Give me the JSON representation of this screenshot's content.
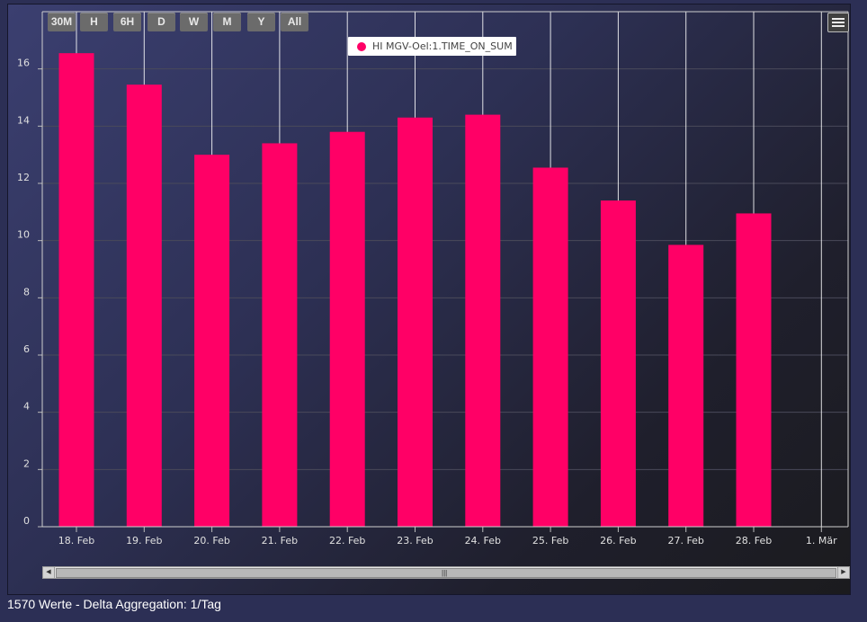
{
  "range_buttons": [
    "30M",
    "H",
    "6H",
    "D",
    "W",
    "M",
    "Y",
    "All"
  ],
  "legend": {
    "label": "HI MGV-Oel:1.TIME_ON_SUM",
    "color": "#ff0066"
  },
  "footer": {
    "text": "1570 Werte - Delta Aggregation: 1/Tag"
  },
  "icons": {
    "menu": "hamburger-icon"
  },
  "chart_data": {
    "type": "bar",
    "categories": [
      "18. Feb",
      "19. Feb",
      "20. Feb",
      "21. Feb",
      "22. Feb",
      "23. Feb",
      "24. Feb",
      "25. Feb",
      "26. Feb",
      "27. Feb",
      "28. Feb",
      "1. Mär"
    ],
    "series": [
      {
        "name": "HI MGV-Oel:1.TIME_ON_SUM",
        "color": "#ff0066",
        "values": [
          16.55,
          15.45,
          13.0,
          13.4,
          13.8,
          14.3,
          14.4,
          12.55,
          11.4,
          9.85,
          10.95,
          null
        ]
      }
    ],
    "yticks": [
      0,
      2,
      4,
      6,
      8,
      10,
      12,
      14,
      16
    ],
    "ylim": [
      0,
      18
    ],
    "grid": true,
    "legend_position": "top-center"
  }
}
